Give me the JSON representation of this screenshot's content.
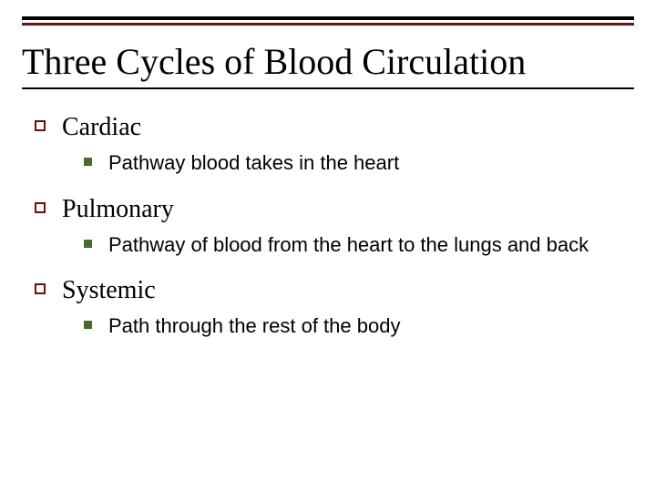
{
  "title": "Three Cycles of Blood Circulation",
  "colors": {
    "top_rule_1": "#000000",
    "top_rule_2": "#6b0f0f",
    "under_rule": "#000000",
    "outline_bullet_border": "#6b0f0f",
    "filled_bullet": "#4a6b2a",
    "text": "#000000",
    "background": "#ffffff"
  },
  "typography": {
    "title_font": "Times New Roman",
    "title_size_pt": 30,
    "lvl1_font": "Times New Roman",
    "lvl1_size_pt": 21,
    "lvl2_font": "Arial",
    "lvl2_size_pt": 16
  },
  "items": [
    {
      "label": "Cardiac",
      "sub": "Pathway blood takes in the heart"
    },
    {
      "label": "Pulmonary",
      "sub": "Pathway of blood from the heart to the lungs and back"
    },
    {
      "label": "Systemic",
      "sub": "Path through the rest of the body"
    }
  ]
}
